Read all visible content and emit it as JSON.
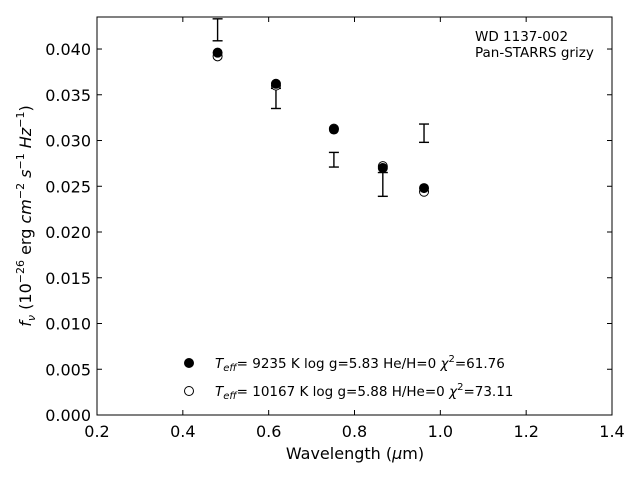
{
  "chart_data": {
    "type": "scatter",
    "annotation": [
      "WD 1137-002",
      "Pan-STARRS grizy"
    ],
    "xlabel": "Wavelength (μm)",
    "ylabel": "f_ν (10^-26 erg cm^-2 s^-1 Hz^-1)",
    "xlim": [
      0.2,
      1.4
    ],
    "ylim": [
      0.0,
      0.0435
    ],
    "xticks": [
      0.2,
      0.4,
      0.6,
      0.8,
      1.0,
      1.2,
      1.4
    ],
    "xtick_labels": [
      "0.2",
      "0.4",
      "0.6",
      "0.8",
      "1.0",
      "1.2",
      "1.4"
    ],
    "yticks": [
      0.0,
      0.005,
      0.01,
      0.015,
      0.02,
      0.025,
      0.03,
      0.035,
      0.04
    ],
    "ytick_labels": [
      "0.000",
      "0.005",
      "0.010",
      "0.015",
      "0.020",
      "0.025",
      "0.030",
      "0.035",
      "0.040"
    ],
    "grid": false,
    "legend_position": "bottom-center",
    "observed": {
      "x": [
        0.481,
        0.617,
        0.752,
        0.866,
        0.962
      ],
      "y": [
        0.0421,
        0.0346,
        0.0279,
        0.0252,
        0.0308
      ],
      "err": [
        0.0012,
        0.0011,
        0.0008,
        0.0013,
        0.001
      ]
    },
    "series": [
      {
        "name": "Teff= 9235 K log g=5.83 He/H=0 χ²=61.76",
        "legend": {
          "teff": "T_eff=  9235 K",
          "logg": "log g=5.83",
          "comp": "He/H=0",
          "chi2": "χ²=61.76"
        },
        "marker": "filled-circle",
        "x": [
          0.481,
          0.617,
          0.752,
          0.866,
          0.962
        ],
        "y": [
          0.0396,
          0.0362,
          0.0312,
          0.027,
          0.0248
        ]
      },
      {
        "name": "Teff= 10167 K log g=5.88 H/He=0 χ²=73.11",
        "legend": {
          "teff": "T_eff= 10167 K",
          "logg": "log g=5.88",
          "comp": "H/He=0",
          "chi2": "χ²=73.11"
        },
        "marker": "open-circle",
        "x": [
          0.481,
          0.617,
          0.752,
          0.866,
          0.962
        ],
        "y": [
          0.0392,
          0.036,
          0.0313,
          0.0272,
          0.0244
        ]
      }
    ]
  }
}
